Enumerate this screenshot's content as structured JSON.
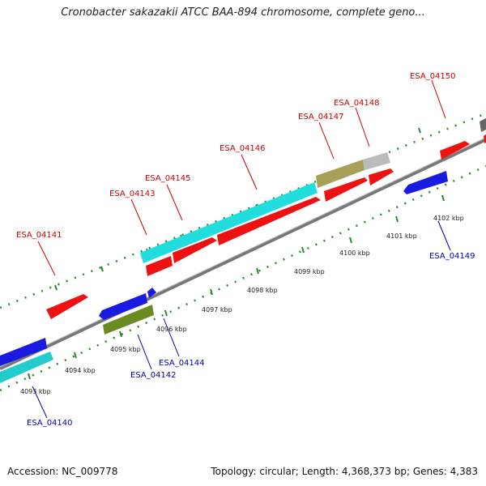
{
  "title": "Cronobacter sakazakii ATCC BAA-894 chromosome, complete geno...",
  "footer": {
    "accession": "Accession: NC_009778",
    "summary": "Topology: circular; Length: 4,368,373 bp; Genes: 4,383"
  },
  "colors": {
    "forward_label": "#cc0000",
    "reverse_label": "#0000aa",
    "backbone": "#777777",
    "tick": "#2a8a2a"
  },
  "axis_ticks": [
    {
      "label": "4093 kbp"
    },
    {
      "label": "4094 kbp"
    },
    {
      "label": "4095 kbp"
    },
    {
      "label": "4096 kbp"
    },
    {
      "label": "4097 kbp"
    },
    {
      "label": "4098 kbp"
    },
    {
      "label": "4099 kbp"
    },
    {
      "label": "4100 kbp"
    },
    {
      "label": "4101 kbp"
    },
    {
      "label": "4102 kbp"
    }
  ],
  "gene_labels": [
    {
      "name": "ESA_04141",
      "strand": "forward"
    },
    {
      "name": "ESA_04143",
      "strand": "forward"
    },
    {
      "name": "ESA_04145",
      "strand": "forward"
    },
    {
      "name": "ESA_04146",
      "strand": "forward"
    },
    {
      "name": "ESA_04147",
      "strand": "forward"
    },
    {
      "name": "ESA_04148",
      "strand": "forward"
    },
    {
      "name": "ESA_04150",
      "strand": "forward"
    },
    {
      "name": "ESA_04140",
      "strand": "reverse"
    },
    {
      "name": "ESA_04142",
      "strand": "reverse"
    },
    {
      "name": "ESA_04144",
      "strand": "reverse"
    },
    {
      "name": "ESA_04149",
      "strand": "reverse"
    }
  ]
}
